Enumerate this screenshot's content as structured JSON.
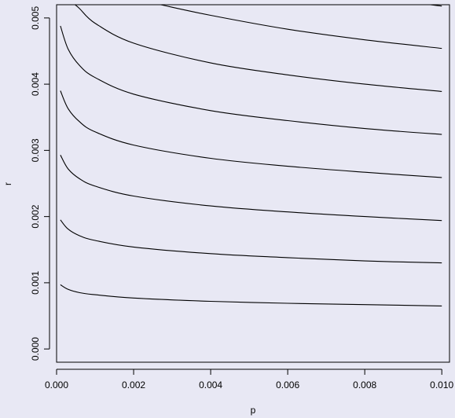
{
  "chart_data": {
    "type": "line",
    "title": "",
    "xlabel": "p",
    "ylabel": "r",
    "xlim": [
      0.0,
      0.0102
    ],
    "ylim": [
      -0.0002,
      0.0052
    ],
    "grid": false,
    "legend": "none",
    "x_ticks": [
      {
        "value": 0.0,
        "label": "0.000"
      },
      {
        "value": 0.002,
        "label": "0.002"
      },
      {
        "value": 0.004,
        "label": "0.004"
      },
      {
        "value": 0.006,
        "label": "0.006"
      },
      {
        "value": 0.008,
        "label": "0.008"
      },
      {
        "value": 0.01,
        "label": "0.010"
      }
    ],
    "y_ticks": [
      {
        "value": 0.0,
        "label": "0.000"
      },
      {
        "value": 0.001,
        "label": "0.001"
      },
      {
        "value": 0.002,
        "label": "0.002"
      },
      {
        "value": 0.003,
        "label": "0.003"
      },
      {
        "value": 0.004,
        "label": "0.004"
      },
      {
        "value": 0.005,
        "label": "0.005"
      }
    ],
    "series": [
      {
        "values": [
          [
            0.0001,
            0.00097
          ],
          [
            0.0003,
            0.0009
          ],
          [
            0.0006,
            0.00085
          ],
          [
            0.001,
            0.00082
          ],
          [
            0.002,
            0.00077
          ],
          [
            0.004,
            0.00072
          ],
          [
            0.006,
            0.00069
          ],
          [
            0.008,
            0.00067
          ],
          [
            0.01,
            0.00065
          ]
        ]
      },
      {
        "values": [
          [
            0.0001,
            0.00195
          ],
          [
            0.0003,
            0.00181
          ],
          [
            0.0006,
            0.00171
          ],
          [
            0.001,
            0.00164
          ],
          [
            0.002,
            0.00154
          ],
          [
            0.004,
            0.00144
          ],
          [
            0.006,
            0.00138
          ],
          [
            0.008,
            0.00133
          ],
          [
            0.01,
            0.0013
          ]
        ]
      },
      {
        "values": [
          [
            0.0001,
            0.00293
          ],
          [
            0.0003,
            0.00272
          ],
          [
            0.0006,
            0.00257
          ],
          [
            0.001,
            0.00246
          ],
          [
            0.002,
            0.00231
          ],
          [
            0.004,
            0.00216
          ],
          [
            0.006,
            0.00207
          ],
          [
            0.008,
            0.002
          ],
          [
            0.01,
            0.00194
          ]
        ]
      },
      {
        "values": [
          [
            0.0001,
            0.0039
          ],
          [
            0.0003,
            0.00363
          ],
          [
            0.0006,
            0.00343
          ],
          [
            0.001,
            0.00328
          ],
          [
            0.002,
            0.00308
          ],
          [
            0.004,
            0.00288
          ],
          [
            0.006,
            0.00276
          ],
          [
            0.008,
            0.00267
          ],
          [
            0.01,
            0.00259
          ]
        ]
      },
      {
        "values": [
          [
            0.0001,
            0.00488
          ],
          [
            0.0003,
            0.00453
          ],
          [
            0.0006,
            0.00428
          ],
          [
            0.001,
            0.0041
          ],
          [
            0.002,
            0.00385
          ],
          [
            0.004,
            0.0036
          ],
          [
            0.006,
            0.00345
          ],
          [
            0.008,
            0.00333
          ],
          [
            0.01,
            0.00324
          ]
        ]
      },
      {
        "values": [
          [
            0.00048,
            0.0052
          ],
          [
            0.0006,
            0.00514
          ],
          [
            0.001,
            0.00492
          ],
          [
            0.002,
            0.00462
          ],
          [
            0.004,
            0.00432
          ],
          [
            0.006,
            0.00414
          ],
          [
            0.008,
            0.004
          ],
          [
            0.01,
            0.00389
          ]
        ]
      },
      {
        "values": [
          [
            0.0027,
            0.0052
          ],
          [
            0.004,
            0.00504
          ],
          [
            0.006,
            0.00483
          ],
          [
            0.008,
            0.00467
          ],
          [
            0.01,
            0.00454
          ]
        ]
      },
      {
        "values": [
          [
            0.0084,
            0.0052
          ],
          [
            0.009,
            0.00524
          ],
          [
            0.01,
            0.00518
          ]
        ]
      }
    ]
  }
}
